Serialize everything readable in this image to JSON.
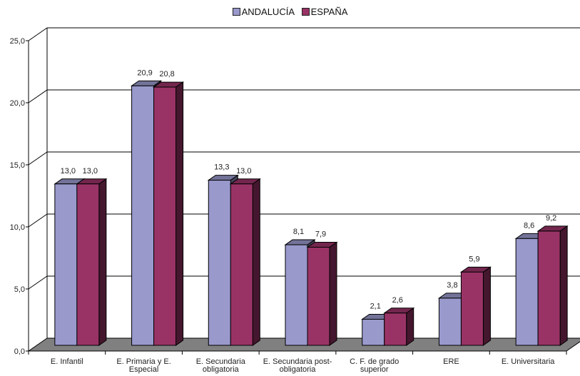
{
  "chart_data": {
    "type": "bar",
    "categories": [
      [
        "E. Infantil"
      ],
      [
        "E. Primaria y E.",
        "Especial"
      ],
      [
        "E. Secundaria",
        "obligatoria"
      ],
      [
        "E. Secundaria post-",
        "obligatoria"
      ],
      [
        "C. F. de grado",
        "superior"
      ],
      [
        "ERE"
      ],
      [
        "E. Universitaria"
      ]
    ],
    "series": [
      {
        "name": "ANDALUCÍA",
        "color": "#9999CC",
        "values": [
          13.0,
          20.9,
          13.3,
          8.1,
          2.1,
          3.8,
          8.6
        ],
        "labels": [
          "13,0",
          "20,9",
          "13,3",
          "8,1",
          "2,1",
          "3,8",
          "8,6"
        ]
      },
      {
        "name": "ESPAÑA",
        "color": "#993366",
        "values": [
          13.0,
          20.8,
          13.0,
          7.9,
          2.6,
          5.9,
          9.2
        ],
        "labels": [
          "13,0",
          "20,8",
          "13,0",
          "7,9",
          "2,6",
          "5,9",
          "9,2"
        ]
      }
    ],
    "ylim": [
      0,
      25
    ],
    "yticks": [
      "0,0",
      "5,0",
      "10,0",
      "15,0",
      "20,0",
      "25,0"
    ],
    "grid": true,
    "legend_position": "top-center",
    "style": "3d"
  }
}
